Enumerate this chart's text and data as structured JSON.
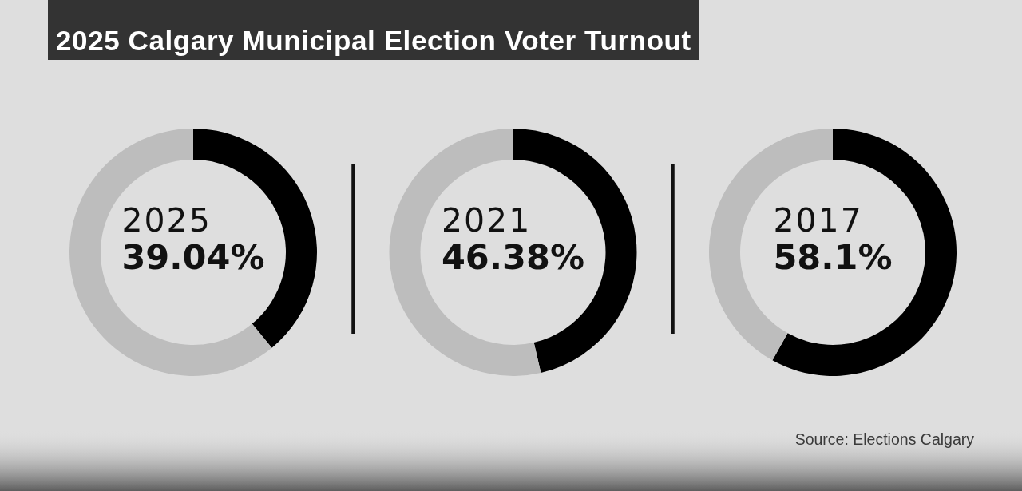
{
  "chart_data": [
    {
      "type": "other",
      "title": "2025 Calgary Municipal Election Voter Turnout",
      "annotations": [
        "Source: Elections Calgary"
      ]
    },
    {
      "type": "donut",
      "subtitle": "2025",
      "categories": [
        null,
        null
      ],
      "values": [
        39.04,
        60.96
      ],
      "colors": [
        "#000000",
        "#bdbdbd"
      ],
      "annotations": [
        "39.04%"
      ]
    },
    {
      "type": "donut",
      "subtitle": "2021",
      "categories": [
        null,
        null
      ],
      "values": [
        46.38,
        53.62
      ],
      "colors": [
        "#000000",
        "#bdbdbd"
      ],
      "annotations": [
        "46.38%"
      ]
    },
    {
      "type": "donut",
      "subtitle": "2017",
      "categories": [
        null,
        null
      ],
      "values": [
        58.1,
        41.9
      ],
      "colors": [
        "#000000",
        "#bdbdbd"
      ],
      "annotations": [
        "58.1%"
      ]
    }
  ]
}
